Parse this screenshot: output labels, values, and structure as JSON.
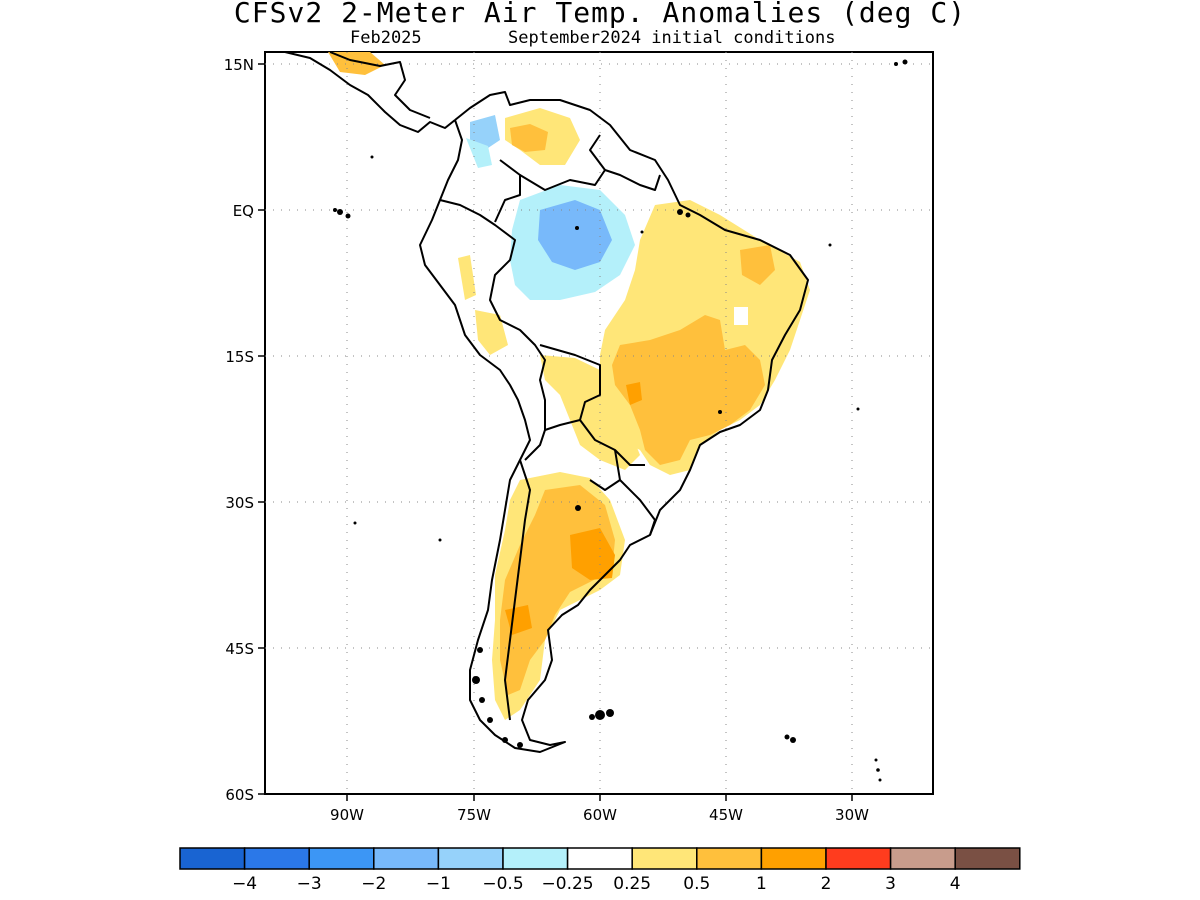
{
  "title": "CFSv2 2-Meter Air Temp. Anomalies (deg C)",
  "valid_month": "Feb2025",
  "initial_conditions": "September2024 initial conditions",
  "map": {
    "region": "South America",
    "lat_ticks": [
      "15N",
      "EQ",
      "15S",
      "30S",
      "45S",
      "60S"
    ],
    "lon_ticks": [
      "90W",
      "75W",
      "60W",
      "45W",
      "30W"
    ],
    "grid": true
  },
  "colorbar": {
    "colors": [
      "#1964d2",
      "#2b78e8",
      "#3c96f5",
      "#78b9fa",
      "#96d2fa",
      "#b4f0fa",
      "#ffffff",
      "#ffe678",
      "#ffc03c",
      "#ffa000",
      "#ff3c1e",
      "#c89c8c",
      "#7a5044"
    ],
    "labels": [
      "−4",
      "−3",
      "−2",
      "−1",
      "−0.5",
      "−0.25",
      "0.25",
      "0.5",
      "1",
      "2",
      "3",
      "4"
    ]
  }
}
